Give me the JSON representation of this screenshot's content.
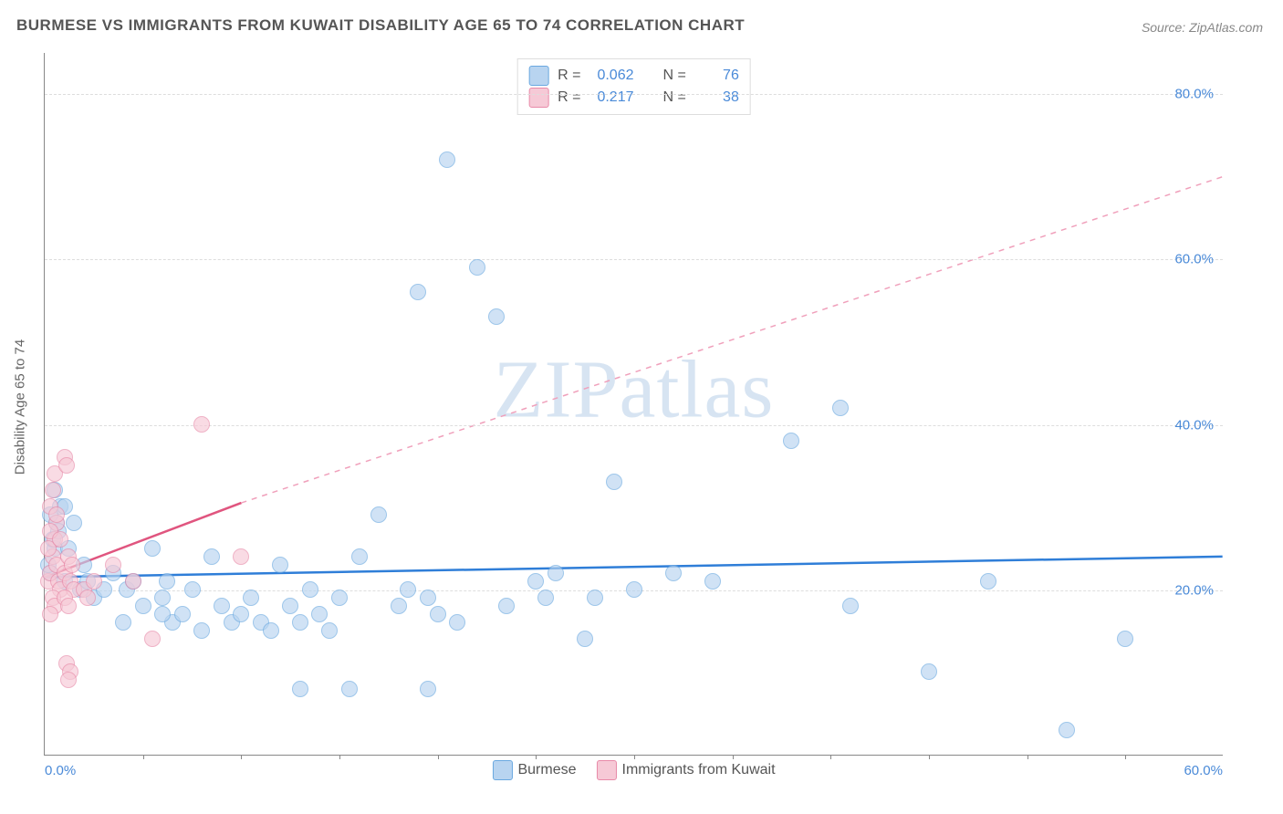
{
  "title": "BURMESE VS IMMIGRANTS FROM KUWAIT DISABILITY AGE 65 TO 74 CORRELATION CHART",
  "source": "Source: ZipAtlas.com",
  "watermark": "ZIPatlas",
  "y_axis_title": "Disability Age 65 to 74",
  "chart": {
    "type": "scatter",
    "xlim": [
      0,
      60
    ],
    "ylim": [
      0,
      85
    ],
    "x_ticks": [
      {
        "v": 0,
        "l": "0.0%"
      },
      {
        "v": 60,
        "l": "60.0%"
      }
    ],
    "y_ticks": [
      {
        "v": 20,
        "l": "20.0%"
      },
      {
        "v": 40,
        "l": "40.0%"
      },
      {
        "v": 60,
        "l": "60.0%"
      },
      {
        "v": 80,
        "l": "80.0%"
      }
    ],
    "x_minor_ticks": [
      5,
      10,
      15,
      20,
      25,
      30,
      35,
      40,
      45,
      50,
      55
    ],
    "background_color": "#ffffff",
    "grid_color": "#dddddd",
    "marker_radius": 9,
    "marker_border_width": 1.5,
    "series": [
      {
        "name": "Burmese",
        "fill": "#b8d4f0",
        "stroke": "#6aa8e0",
        "fill_opacity": 0.65,
        "trend": {
          "x1": 0,
          "y1": 21.5,
          "x2": 60,
          "y2": 24.0,
          "color": "#2f7ed8",
          "width": 2.5,
          "dash": false
        },
        "R": "0.062",
        "N": "76",
        "points": [
          [
            0.3,
            22
          ],
          [
            0.5,
            25
          ],
          [
            0.6,
            28
          ],
          [
            0.8,
            30
          ],
          [
            0.4,
            26
          ],
          [
            0.2,
            23
          ],
          [
            0.7,
            27
          ],
          [
            1.0,
            21
          ],
          [
            1.2,
            25
          ],
          [
            1.5,
            28
          ],
          [
            1.0,
            30
          ],
          [
            0.5,
            32
          ],
          [
            0.3,
            29
          ],
          [
            1.8,
            20
          ],
          [
            2.0,
            23
          ],
          [
            2.2,
            21
          ],
          [
            2.5,
            19
          ],
          [
            3.0,
            20
          ],
          [
            3.5,
            22
          ],
          [
            4.0,
            16
          ],
          [
            4.2,
            20
          ],
          [
            4.5,
            21
          ],
          [
            5.0,
            18
          ],
          [
            5.5,
            25
          ],
          [
            6.0,
            19
          ],
          [
            6.2,
            21
          ],
          [
            6.5,
            16
          ],
          [
            7.0,
            17
          ],
          [
            7.5,
            20
          ],
          [
            8.0,
            15
          ],
          [
            8.5,
            24
          ],
          [
            9.0,
            18
          ],
          [
            9.5,
            16
          ],
          [
            10.0,
            17
          ],
          [
            10.5,
            19
          ],
          [
            11.0,
            16
          ],
          [
            11.5,
            15
          ],
          [
            12.0,
            23
          ],
          [
            12.5,
            18
          ],
          [
            13.0,
            16
          ],
          [
            13.5,
            20
          ],
          [
            14.0,
            17
          ],
          [
            14.5,
            15
          ],
          [
            15.0,
            19
          ],
          [
            15.5,
            8
          ],
          [
            16.0,
            24
          ],
          [
            17.0,
            29
          ],
          [
            18.0,
            18
          ],
          [
            19.0,
            56
          ],
          [
            19.5,
            19
          ],
          [
            20.0,
            17
          ],
          [
            20.5,
            72
          ],
          [
            21.0,
            16
          ],
          [
            22.0,
            59
          ],
          [
            23.0,
            53
          ],
          [
            23.5,
            18
          ],
          [
            25.0,
            21
          ],
          [
            25.5,
            19
          ],
          [
            26.0,
            22
          ],
          [
            27.5,
            14
          ],
          [
            28.0,
            19
          ],
          [
            29.0,
            33
          ],
          [
            30.0,
            20
          ],
          [
            32.0,
            22
          ],
          [
            34.0,
            21
          ],
          [
            38.0,
            38
          ],
          [
            40.5,
            42
          ],
          [
            41.0,
            18
          ],
          [
            45.0,
            10
          ],
          [
            48.0,
            21
          ],
          [
            52.0,
            3
          ],
          [
            55.0,
            14
          ],
          [
            18.5,
            20
          ],
          [
            13.0,
            8
          ],
          [
            19.5,
            8
          ],
          [
            6.0,
            17
          ]
        ]
      },
      {
        "name": "Immigrants from Kuwait",
        "fill": "#f6c9d6",
        "stroke": "#e88aa8",
        "fill_opacity": 0.65,
        "trend_solid": {
          "x1": 0,
          "y1": 21.5,
          "x2": 10,
          "y2": 30.5,
          "color": "#e0557f",
          "width": 2.5
        },
        "trend_dash": {
          "x1": 10,
          "y1": 30.5,
          "x2": 60,
          "y2": 70.0,
          "color": "#f0a0bb",
          "width": 1.5
        },
        "R": "0.217",
        "N": "38",
        "points": [
          [
            0.2,
            21
          ],
          [
            0.3,
            22
          ],
          [
            0.4,
            24
          ],
          [
            0.5,
            26
          ],
          [
            0.6,
            28
          ],
          [
            0.3,
            30
          ],
          [
            0.4,
            32
          ],
          [
            0.5,
            34
          ],
          [
            0.2,
            25
          ],
          [
            0.3,
            27
          ],
          [
            0.6,
            23
          ],
          [
            0.7,
            21
          ],
          [
            0.8,
            20
          ],
          [
            0.4,
            19
          ],
          [
            0.5,
            18
          ],
          [
            0.3,
            17
          ],
          [
            0.6,
            29
          ],
          [
            0.8,
            26
          ],
          [
            1.0,
            22
          ],
          [
            1.2,
            24
          ],
          [
            1.0,
            36
          ],
          [
            1.1,
            35
          ],
          [
            1.3,
            21
          ],
          [
            1.5,
            20
          ],
          [
            1.0,
            19
          ],
          [
            1.2,
            18
          ],
          [
            1.4,
            23
          ],
          [
            1.1,
            11
          ],
          [
            1.3,
            10
          ],
          [
            1.2,
            9
          ],
          [
            2.0,
            20
          ],
          [
            2.2,
            19
          ],
          [
            2.5,
            21
          ],
          [
            3.5,
            23
          ],
          [
            4.5,
            21
          ],
          [
            5.5,
            14
          ],
          [
            8.0,
            40
          ],
          [
            10.0,
            24
          ]
        ]
      }
    ]
  },
  "legend_top": {
    "rows": [
      {
        "swatch_fill": "#b8d4f0",
        "swatch_stroke": "#6aa8e0",
        "R_label": "R =",
        "R": "0.062",
        "N_label": "N =",
        "N": "76"
      },
      {
        "swatch_fill": "#f6c9d6",
        "swatch_stroke": "#e88aa8",
        "R_label": "R =",
        "R": "0.217",
        "N_label": "N =",
        "N": "38"
      }
    ]
  },
  "legend_bottom": {
    "items": [
      {
        "swatch_fill": "#b8d4f0",
        "swatch_stroke": "#6aa8e0",
        "label": "Burmese"
      },
      {
        "swatch_fill": "#f6c9d6",
        "swatch_stroke": "#e88aa8",
        "label": "Immigrants from Kuwait"
      }
    ]
  }
}
